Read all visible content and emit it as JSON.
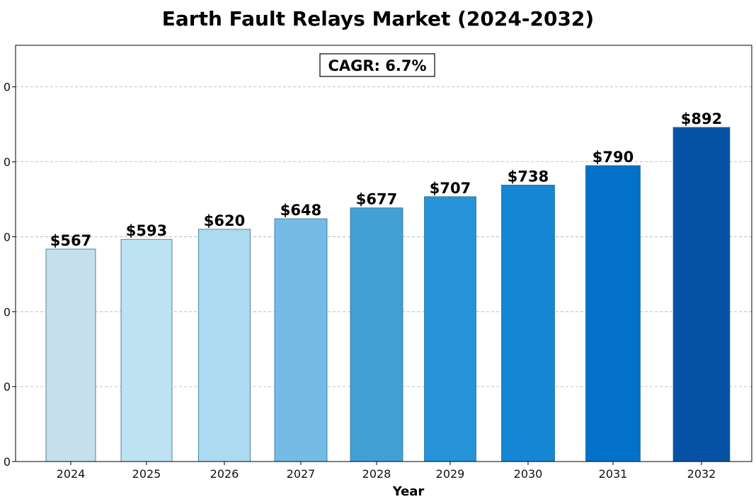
{
  "chart_data": {
    "type": "bar",
    "title": "Earth Fault Relays Market (2024-2032)",
    "xlabel": "Year",
    "ylabel": "",
    "categories": [
      "2024",
      "2025",
      "2026",
      "2027",
      "2028",
      "2029",
      "2030",
      "2031",
      "2032"
    ],
    "values": [
      567,
      593,
      620,
      648,
      677,
      707,
      738,
      790,
      892
    ],
    "value_labels": [
      "$567",
      "$593",
      "$620",
      "$648",
      "$677",
      "$707",
      "$738",
      "$790",
      "$892"
    ],
    "ylim": [
      0,
      1111
    ],
    "y_ticks": [
      0,
      200,
      400,
      600,
      800,
      1000
    ],
    "y_tick_labels": [
      "0",
      "0",
      "0",
      "0",
      "0",
      "0"
    ],
    "grid": "y-dashed",
    "annotation": "CAGR: 6.7%",
    "bar_colors": [
      "#c6dfec",
      "#bde3f3",
      "#acdaf0",
      "#74bce6",
      "#42a0d5",
      "#2793d8",
      "#1486d3",
      "#0371c9",
      "#0552a5"
    ]
  }
}
